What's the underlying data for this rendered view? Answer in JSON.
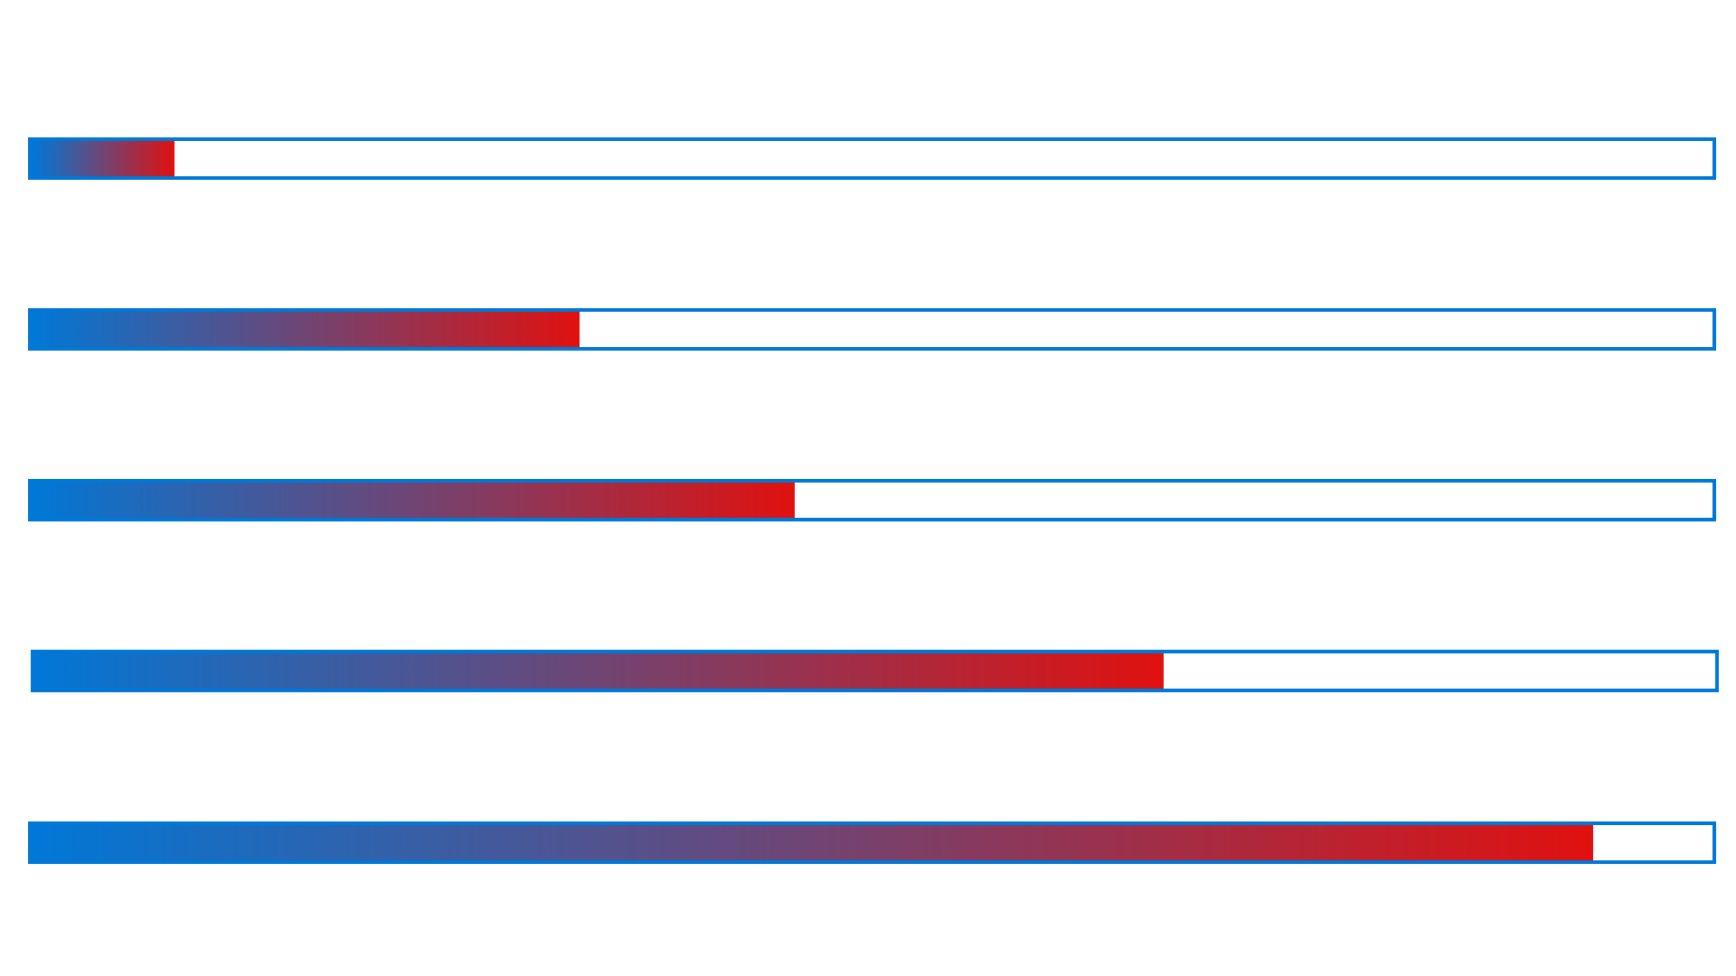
{
  "colors": {
    "border": "#0078d7",
    "gradient_start": "#0078d7",
    "gradient_end": "#e0110f",
    "track": "#ffffff"
  },
  "progress_bars": [
    {
      "progress": 0.085
    },
    {
      "progress": 0.326
    },
    {
      "progress": 0.454
    },
    {
      "progress": 0.672
    },
    {
      "progress": 0.929
    }
  ]
}
